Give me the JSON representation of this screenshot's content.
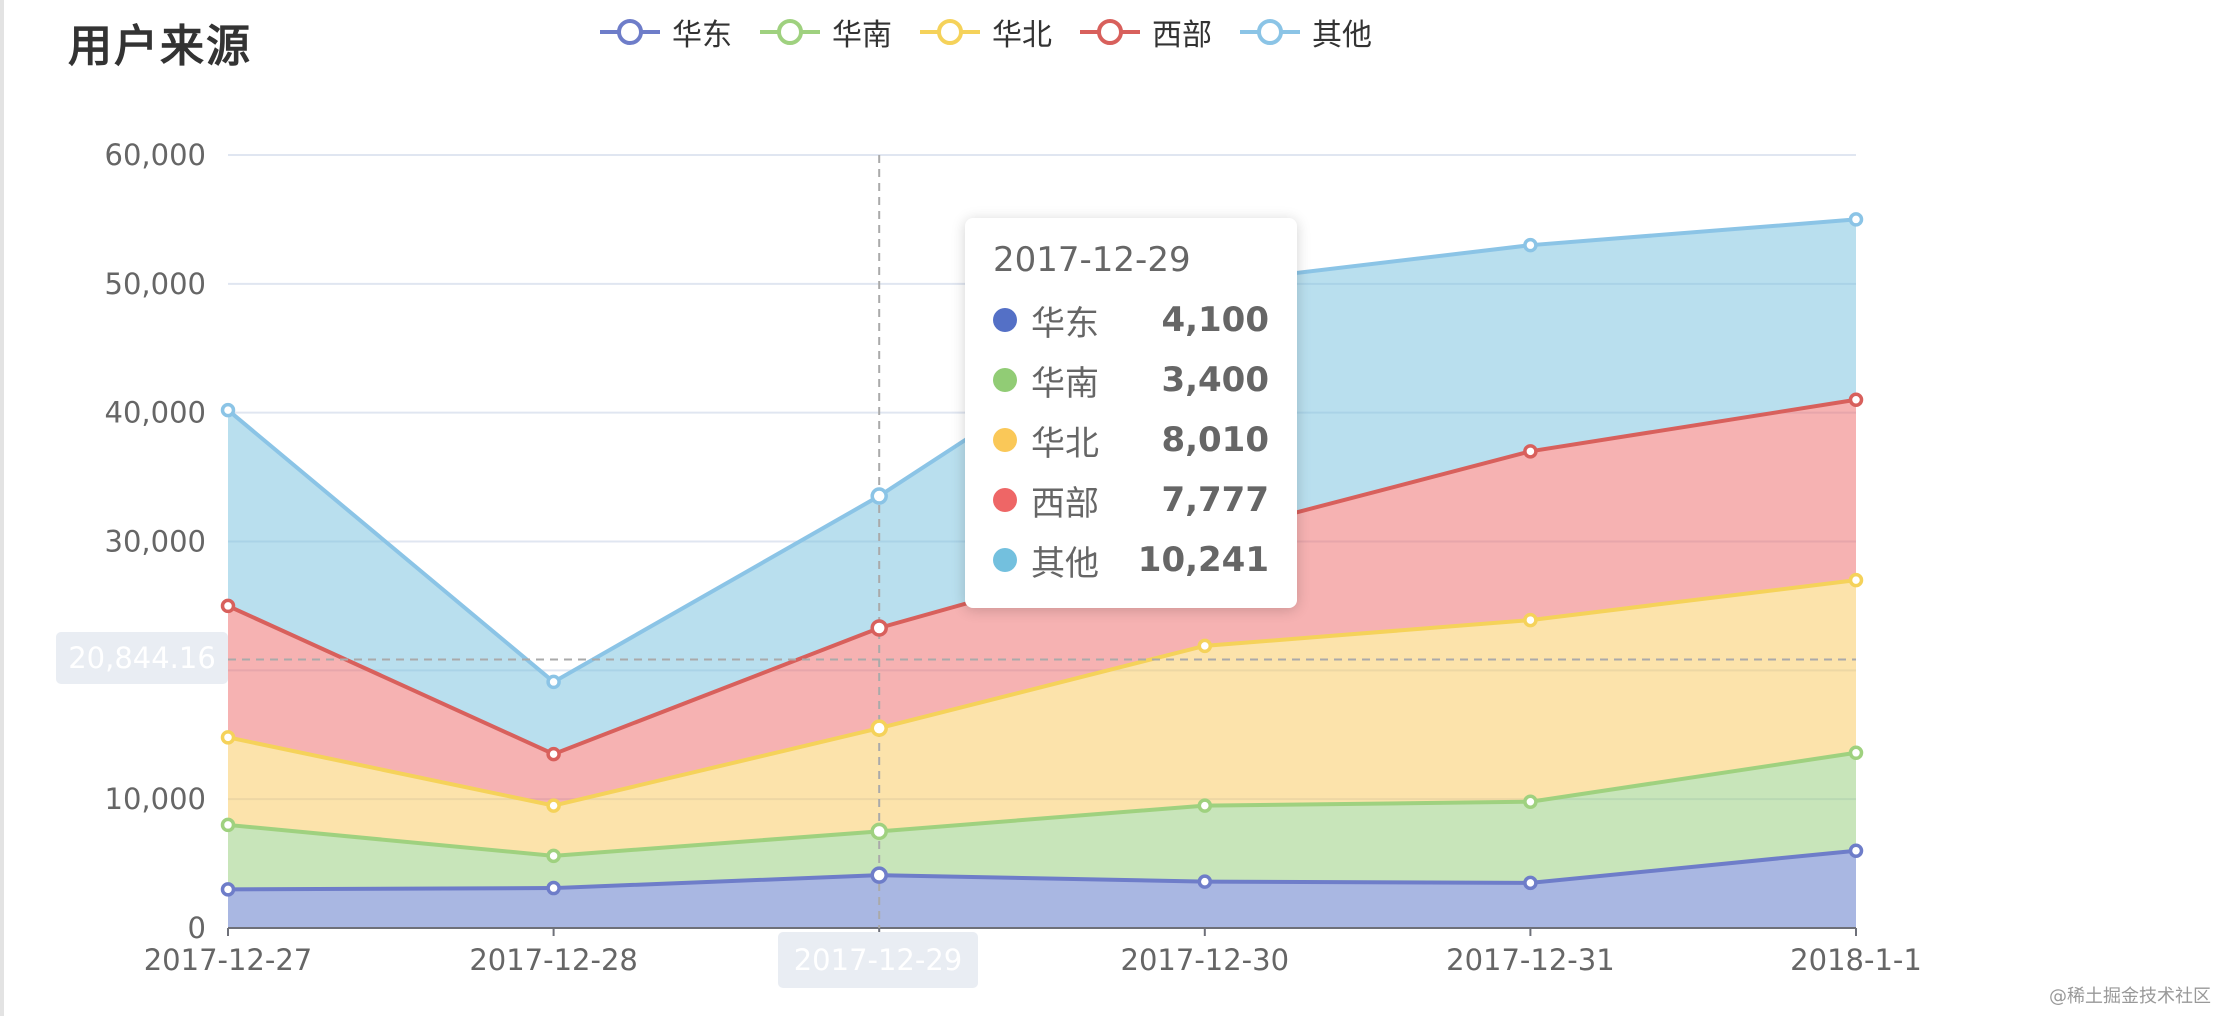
{
  "title": "用户来源",
  "watermark": "@稀土掘金技术社区",
  "chart_data": {
    "type": "area",
    "stacked": true,
    "title": "用户来源",
    "categories": [
      "2017-12-27",
      "2017-12-28",
      "2017-12-29",
      "2017-12-30",
      "2017-12-31",
      "2018-1-1"
    ],
    "y_ticks": [
      "0",
      "10,000",
      "20,000",
      "30,000",
      "40,000",
      "50,000",
      "60,000"
    ],
    "ylim": [
      0,
      60000
    ],
    "grid": true,
    "legend_position": "top",
    "series": [
      {
        "name": "华东",
        "color": "#5470c6",
        "values": [
          3000,
          3100,
          4100,
          3600,
          3500,
          6000
        ]
      },
      {
        "name": "华南",
        "color": "#91cc75",
        "values": [
          5000,
          2500,
          3400,
          5900,
          6300,
          7600
        ]
      },
      {
        "name": "华北",
        "color": "#fac858",
        "values": [
          6800,
          3900,
          8010,
          12400,
          14100,
          13400
        ]
      },
      {
        "name": "西部",
        "color": "#ee6666",
        "values": [
          10200,
          4000,
          7777,
          8500,
          13100,
          14000
        ]
      },
      {
        "name": "其他",
        "color": "#73c0de",
        "values": [
          15200,
          5600,
          10241,
          19600,
          16000,
          14000
        ]
      }
    ],
    "series_lighter": [
      "#6e7dc9",
      "#9fd17f",
      "#f5d25a",
      "#d8605c",
      "#8bc4e6"
    ],
    "axis_pointer": {
      "x_label": "2017-12-29",
      "y_label": "20,844.16",
      "y_value": 20844.16
    },
    "tooltip": {
      "title": "2017-12-29",
      "rows": [
        {
          "name": "华东",
          "value": "4,100",
          "color": "#5470c6"
        },
        {
          "name": "华南",
          "value": "3,400",
          "color": "#91cc75"
        },
        {
          "name": "华北",
          "value": "8,010",
          "color": "#fac858"
        },
        {
          "name": "西部",
          "value": "7,777",
          "color": "#ee6666"
        },
        {
          "name": "其他",
          "value": "10,241",
          "color": "#73c0de"
        }
      ]
    }
  }
}
